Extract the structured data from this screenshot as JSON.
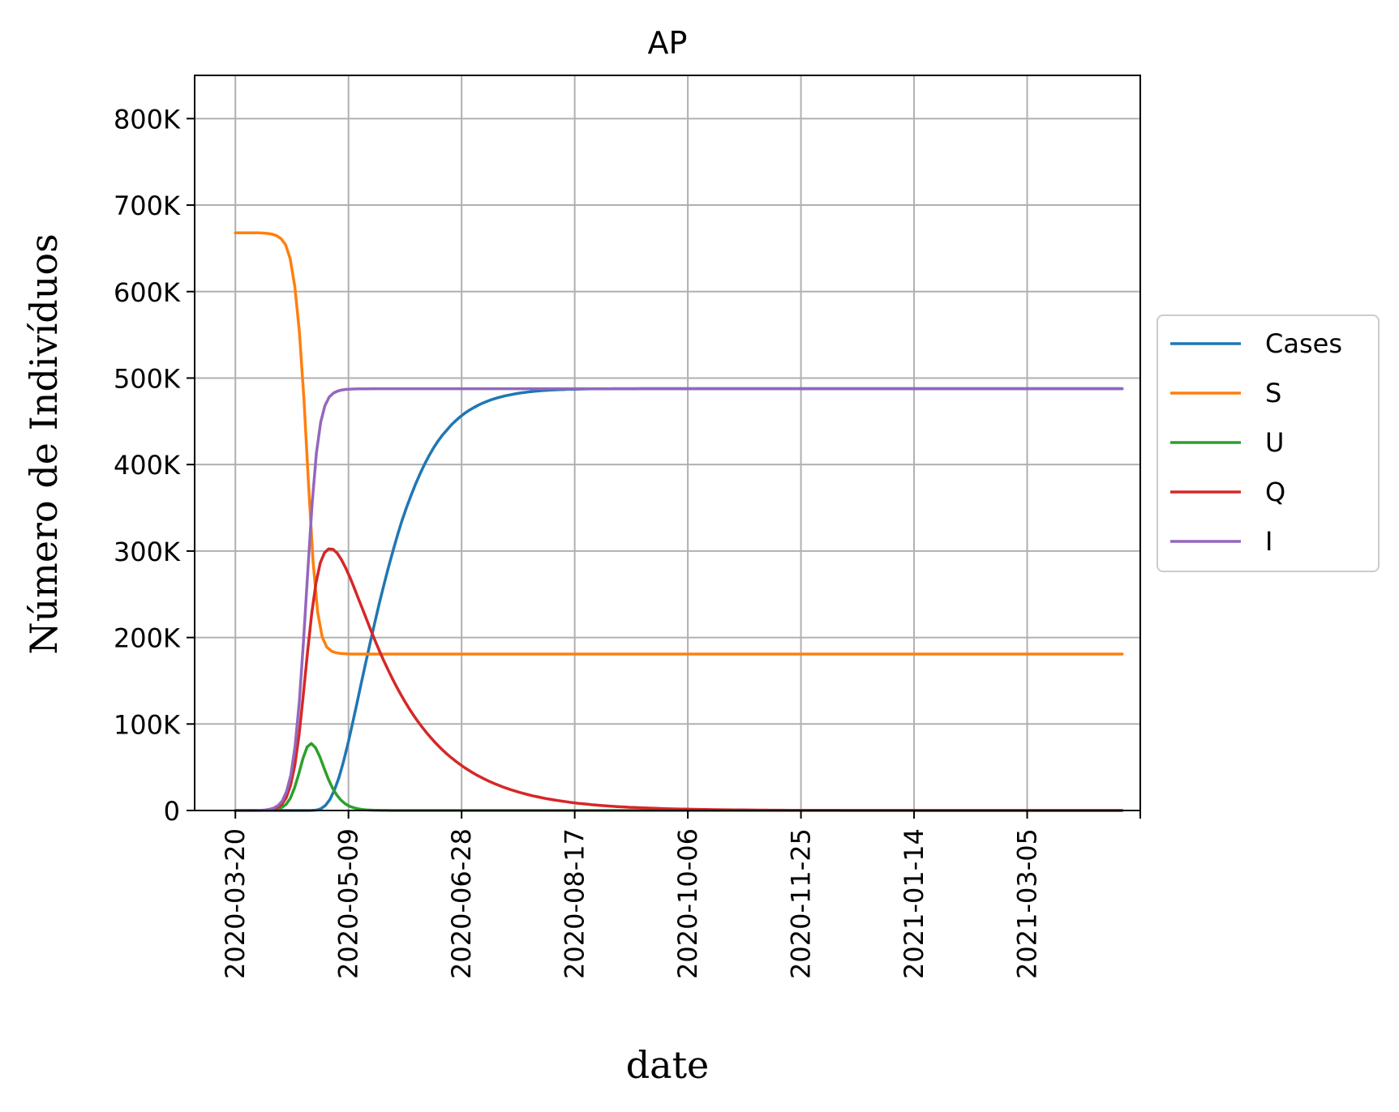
{
  "chart_data": {
    "type": "line",
    "title": "AP",
    "xlabel": "date",
    "ylabel": "Número de Indivíduos",
    "x_start": "2020-03-20",
    "x_end": "2021-04-16",
    "x_step_days": 2,
    "xlim": [
      "2020-03-02",
      "2021-04-24"
    ],
    "ylim": [
      0,
      850000
    ],
    "x_ticks": [
      "2020-03-20",
      "2020-05-09",
      "2020-06-28",
      "2020-08-17",
      "2020-10-06",
      "2020-11-25",
      "2021-01-14",
      "2021-03-05"
    ],
    "y_ticks": [
      {
        "value": 0,
        "label": "0"
      },
      {
        "value": 100000,
        "label": "100K"
      },
      {
        "value": 200000,
        "label": "200K"
      },
      {
        "value": 300000,
        "label": "300K"
      },
      {
        "value": 400000,
        "label": "400K"
      },
      {
        "value": 500000,
        "label": "500K"
      },
      {
        "value": 600000,
        "label": "600K"
      },
      {
        "value": 700000,
        "label": "700K"
      },
      {
        "value": 800000,
        "label": "800K"
      }
    ],
    "grid": true,
    "legend_position": "center-right-outside",
    "series": [
      {
        "name": "Cases",
        "color": "#1f77b4",
        "values": [
          0,
          0,
          0,
          0,
          0,
          0,
          0,
          0,
          0,
          0,
          1,
          1,
          2,
          4,
          8,
          16,
          32,
          84,
          450,
          2017,
          5830,
          12720,
          23500,
          38000,
          56000,
          77100,
          100000,
          124000,
          148000,
          172000,
          195000,
          218000,
          240000,
          261000,
          281000,
          300000,
          318000,
          335000,
          350000,
          364000,
          377000,
          389000,
          400000,
          410000,
          419000,
          427000,
          434000,
          440000,
          446000,
          451000,
          455500,
          459500,
          463000,
          466000,
          468800,
          471200,
          473300,
          475200,
          476800,
          478200,
          479500,
          480600,
          481600,
          482500,
          483200,
          483900,
          484500,
          485000,
          485400,
          485800,
          486100,
          486400,
          486600,
          486800,
          487000,
          487100,
          487200,
          487300,
          487400,
          487500,
          487500,
          487600,
          487600,
          487600,
          487700,
          487700,
          487700,
          487700,
          487700,
          487700,
          487800,
          487800,
          487800,
          487800,
          487800,
          487800,
          487800,
          487800,
          487800,
          487800,
          487800,
          487800,
          487800,
          487800,
          487800,
          487800,
          487800,
          487800,
          487800,
          487800,
          487800,
          487800,
          487800,
          487800,
          487800,
          487800,
          487800,
          487800,
          487800,
          487800,
          487800,
          487800,
          487800,
          487800,
          487800,
          487800,
          487800,
          487800,
          487800,
          487800,
          487800,
          487800,
          487800,
          487800,
          487800,
          487800,
          487800,
          487800,
          487800,
          487800,
          487800,
          487800,
          487800,
          487800,
          487800,
          487800,
          487800,
          487800,
          487800,
          487800,
          487800,
          487800,
          487800,
          487800,
          487800,
          487800,
          487800,
          487800,
          487800,
          487800,
          487800,
          487800,
          487800,
          487800,
          487800,
          487800,
          487800,
          487800,
          487800,
          487800,
          487800,
          487800,
          487800,
          487800,
          487800,
          487800,
          487800,
          487800,
          487800,
          487800,
          487800,
          487800,
          487800,
          487800,
          487800,
          487800,
          487800,
          487800,
          487800,
          487800,
          487800,
          487800,
          487800,
          487800,
          487800,
          487800,
          487800,
          487800
        ]
      },
      {
        "name": "S",
        "color": "#ff7f0e",
        "values": [
          668000,
          668000,
          668000,
          668000,
          668000,
          667900,
          667700,
          667300,
          666400,
          664700,
          661100,
          654000,
          638000,
          606000,
          554000,
          475000,
          378000,
          288000,
          229000,
          200500,
          189000,
          184300,
          182400,
          181600,
          181200,
          181000,
          180900,
          180900,
          180900,
          180900,
          180900,
          180900,
          180900,
          180900,
          180900,
          180900,
          180900,
          180900,
          180900,
          180900,
          180900,
          180900,
          180900,
          180900,
          180900,
          180900,
          180900,
          180900,
          180900,
          180900,
          180900,
          180900,
          180900,
          180900,
          180900,
          180900,
          180900,
          180900,
          180900,
          180900,
          180900,
          180900,
          180900,
          180900,
          180900,
          180900,
          180900,
          180900,
          180900,
          180900,
          180900,
          180900,
          180900,
          180900,
          180900,
          180900,
          180900,
          180900,
          180900,
          180900,
          180900,
          180900,
          180900,
          180900,
          180900,
          180900,
          180900,
          180900,
          180900,
          180900,
          180900,
          180900,
          180900,
          180900,
          180900,
          180900,
          180900,
          180900,
          180900,
          180900,
          180900,
          180900,
          180900,
          180900,
          180900,
          180900,
          180900,
          180900,
          180900,
          180900,
          180900,
          180900,
          180900,
          180900,
          180900,
          180900,
          180900,
          180900,
          180900,
          180900,
          180900,
          180900,
          180900,
          180900,
          180900,
          180900,
          180900,
          180900,
          180900,
          180900,
          180900,
          180900,
          180900,
          180900,
          180900,
          180900,
          180900,
          180900,
          180900,
          180900,
          180900,
          180900,
          180900,
          180900,
          180900,
          180900,
          180900,
          180900,
          180900,
          180900,
          180900,
          180900,
          180900,
          180900,
          180900,
          180900,
          180900,
          180900,
          180900,
          180900,
          180900,
          180900,
          180900,
          180900,
          180900,
          180900,
          180900,
          180900,
          180900,
          180900,
          180900,
          180900,
          180900,
          180900,
          180900,
          180900,
          180900,
          180900,
          180900,
          180900,
          180900,
          180900,
          180900,
          180900,
          180900,
          180900,
          180900,
          180900,
          180900,
          180900,
          180900,
          180900,
          180900,
          180900,
          180900
        ]
      },
      {
        "name": "U",
        "color": "#2ca02c",
        "values": [
          0,
          0,
          0,
          0,
          0,
          0,
          100,
          200,
          400,
          900,
          1800,
          3500,
          7000,
          14000,
          26000,
          42000,
          60000,
          73500,
          77500,
          72500,
          62000,
          49000,
          36500,
          26000,
          18000,
          12000,
          7800,
          5000,
          3200,
          2000,
          1250,
          780,
          490,
          300,
          190,
          120,
          75,
          45,
          28,
          18,
          11,
          7,
          4,
          3,
          2,
          1,
          1,
          0,
          0,
          0,
          0,
          0,
          0,
          0,
          0,
          0,
          0,
          0,
          0,
          0,
          0,
          0,
          0,
          0,
          0,
          0,
          0,
          0,
          0,
          0,
          0,
          0,
          0,
          0,
          0,
          0,
          0,
          0,
          0,
          0,
          0,
          0,
          0,
          0,
          0,
          0,
          0,
          0,
          0,
          0,
          0,
          0,
          0,
          0,
          0,
          0,
          0,
          0,
          0,
          0,
          0,
          0,
          0,
          0,
          0,
          0,
          0,
          0,
          0,
          0,
          0,
          0,
          0,
          0,
          0,
          0,
          0,
          0,
          0,
          0,
          0,
          0,
          0,
          0,
          0,
          0,
          0,
          0,
          0,
          0,
          0,
          0,
          0,
          0,
          0,
          0,
          0,
          0,
          0,
          0,
          0,
          0,
          0,
          0,
          0,
          0,
          0,
          0,
          0,
          0,
          0,
          0,
          0,
          0,
          0,
          0,
          0,
          0,
          0,
          0,
          0,
          0,
          0,
          0,
          0,
          0,
          0,
          0,
          0,
          0,
          0,
          0,
          0,
          0,
          0,
          0,
          0,
          0,
          0,
          0,
          0,
          0,
          0,
          0,
          0,
          0,
          0,
          0,
          0,
          0,
          0,
          0,
          0,
          0,
          0,
          0,
          0,
          0,
          0,
          0,
          0,
          0,
          0,
          0,
          0,
          0,
          0,
          0,
          0,
          0,
          0
        ]
      },
      {
        "name": "Q",
        "color": "#d62728",
        "values": [
          0,
          0,
          0,
          0,
          0,
          0,
          100,
          300,
          700,
          1600,
          3500,
          7500,
          15000,
          29000,
          52000,
          87000,
          133000,
          183000,
          228000,
          263000,
          286000,
          298000,
          302500,
          302000,
          297500,
          290000,
          280500,
          269500,
          257500,
          245000,
          232500,
          220000,
          207500,
          195500,
          184000,
          173000,
          162500,
          152500,
          143000,
          134000,
          125500,
          117500,
          110000,
          103000,
          96500,
          90300,
          84500,
          79100,
          74000,
          69200,
          64800,
          60600,
          56700,
          53100,
          49700,
          46500,
          43500,
          40700,
          38100,
          35700,
          33400,
          31200,
          29200,
          27300,
          25600,
          23900,
          22400,
          20900,
          19600,
          18300,
          17100,
          16000,
          15000,
          14000,
          13100,
          12300,
          11500,
          10800,
          10100,
          9400,
          8800,
          8200,
          7700,
          7200,
          6700,
          6300,
          5900,
          5500,
          5200,
          4800,
          4500,
          4200,
          4000,
          3700,
          3500,
          3300,
          3100,
          2900,
          2700,
          2500,
          2300,
          2200,
          2000,
          1900,
          1800,
          1700,
          1600,
          1500,
          1400,
          1300,
          1200,
          1100,
          1050,
          980,
          920,
          860,
          800,
          750,
          700,
          660,
          620,
          580,
          540,
          500,
          470,
          440,
          410,
          390,
          360,
          340,
          320,
          300,
          280,
          260,
          240,
          230,
          210,
          200,
          190,
          180,
          170,
          160,
          150,
          140,
          130,
          120,
          110,
          100,
          100,
          90,
          90,
          80,
          80,
          70,
          70,
          60,
          60,
          60,
          50,
          50,
          50,
          40,
          40,
          40,
          40,
          30,
          30,
          30,
          30,
          30,
          20,
          20,
          20,
          20,
          20,
          20,
          20,
          10,
          10,
          10,
          10,
          10,
          10,
          10,
          10,
          10,
          10,
          10,
          10,
          10,
          10,
          10,
          10,
          10,
          10,
          10,
          10,
          10,
          10,
          10,
          10,
          10,
          10,
          10,
          10,
          10,
          10,
          10,
          10,
          10
        ]
      },
      {
        "name": "I",
        "color": "#9467bd",
        "values": [
          0,
          0,
          0,
          0,
          0,
          100,
          300,
          600,
          1400,
          2800,
          5600,
          11000,
          22000,
          41000,
          74000,
          126000,
          197000,
          278000,
          354000,
          413000,
          449000,
          468000,
          478000,
          482600,
          485000,
          486300,
          486900,
          487200,
          487400,
          487500,
          487600,
          487600,
          487700,
          487700,
          487700,
          487700,
          487700,
          487700,
          487700,
          487700,
          487700,
          487700,
          487700,
          487700,
          487700,
          487700,
          487700,
          487700,
          487700,
          487700,
          487700,
          487700,
          487700,
          487700,
          487700,
          487700,
          487700,
          487700,
          487700,
          487700,
          487700,
          487700,
          487700,
          487700,
          487700,
          487700,
          487700,
          487700,
          487700,
          487700,
          487700,
          487700,
          487700,
          487700,
          487700,
          487700,
          487700,
          487700,
          487700,
          487700,
          487700,
          487700,
          487700,
          487700,
          487700,
          487700,
          487700,
          487700,
          487700,
          487700,
          487700,
          487700,
          487700,
          487700,
          487700,
          487700,
          487700,
          487700,
          487700,
          487700,
          487700,
          487700,
          487700,
          487700,
          487700,
          487700,
          487700,
          487700,
          487700,
          487700,
          487700,
          487700,
          487700,
          487700,
          487700,
          487700,
          487700,
          487700,
          487700,
          487700,
          487700,
          487700,
          487700,
          487700,
          487700,
          487700,
          487700,
          487700,
          487700,
          487700,
          487700,
          487700,
          487700,
          487700,
          487700,
          487700,
          487700,
          487700,
          487700,
          487700,
          487700,
          487700,
          487700,
          487700,
          487700,
          487700,
          487700,
          487700,
          487700,
          487700,
          487700,
          487700,
          487700,
          487700,
          487700,
          487700,
          487700,
          487700,
          487700,
          487700,
          487700,
          487700,
          487700,
          487700,
          487700,
          487700,
          487700,
          487700,
          487700,
          487700,
          487700,
          487700,
          487700,
          487700,
          487700,
          487700,
          487700,
          487700,
          487700,
          487700,
          487700,
          487700,
          487700,
          487700,
          487700,
          487700,
          487700,
          487700,
          487700,
          487700,
          487700,
          487700,
          487700,
          487700,
          487700,
          487700,
          487700,
          487700,
          487700,
          487700,
          487700,
          487700,
          487700,
          487700,
          487700,
          487700,
          487700,
          487700,
          487700
        ]
      }
    ]
  }
}
